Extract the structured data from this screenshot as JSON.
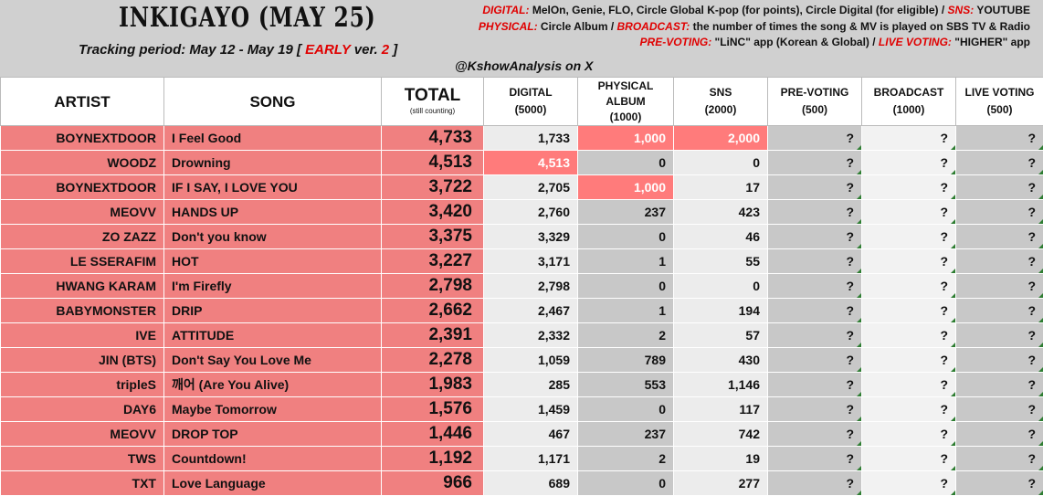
{
  "title": "INKIGAYO (MAY 25)",
  "tracking": {
    "prefix": "Tracking period: May 12 - May 19 [ ",
    "early": "EARLY",
    "ver": " ver. ",
    "ver_num": "2",
    "suffix": " ]"
  },
  "credit": "@KshowAnalysis on X",
  "notes": [
    {
      "k1": "DIGITAL:",
      "t1": " MelOn, Genie, FLO, Circle Global K-pop (for points), Circle Digital (for eligible) / ",
      "k2": "SNS:",
      "t2": " YOUTUBE"
    },
    {
      "k1": "PHYSICAL:",
      "t1": " Circle Album / ",
      "k2": "BROADCAST:",
      "t2": " the number of times the song & MV is played on SBS TV & Radio"
    },
    {
      "k1": "PRE-VOTING:",
      "t1": " \"LiNC\" app (Korean & Global) / ",
      "k2": "LIVE VOTING:",
      "t2": " \"HIGHER\" app"
    }
  ],
  "columns": {
    "artist": "ARTIST",
    "song": "SONG",
    "total": "TOTAL",
    "total_sub": "(still counting)",
    "digital": "DIGITAL",
    "digital_sub": "(5000)",
    "physical": "PHYSICAL ALBUM",
    "physical_sub": "(1000)",
    "sns": "SNS",
    "sns_sub": "(2000)",
    "prevoting": "PRE-VOTING",
    "prevoting_sub": "(500)",
    "broadcast": "BROADCAST",
    "broadcast_sub": "(1000)",
    "livevoting": "LIVE VOTING",
    "livevoting_sub": "(500)"
  },
  "rows": [
    {
      "artist": "BOYNEXTDOOR",
      "song": "I Feel Good",
      "total": "4,733",
      "digital": "1,733",
      "physical": "1,000",
      "sns": "2,000",
      "pre": "?",
      "broadcast": "?",
      "live": "?"
    },
    {
      "artist": "WOODZ",
      "song": "Drowning",
      "total": "4,513",
      "digital": "4,513",
      "physical": "0",
      "sns": "0",
      "pre": "?",
      "broadcast": "?",
      "live": "?"
    },
    {
      "artist": "BOYNEXTDOOR",
      "song": "IF I SAY, I LOVE YOU",
      "total": "3,722",
      "digital": "2,705",
      "physical": "1,000",
      "sns": "17",
      "pre": "?",
      "broadcast": "?",
      "live": "?"
    },
    {
      "artist": "MEOVV",
      "song": "HANDS UP",
      "total": "3,420",
      "digital": "2,760",
      "physical": "237",
      "sns": "423",
      "pre": "?",
      "broadcast": "?",
      "live": "?"
    },
    {
      "artist": "ZO ZAZZ",
      "song": "Don't you know",
      "total": "3,375",
      "digital": "3,329",
      "physical": "0",
      "sns": "46",
      "pre": "?",
      "broadcast": "?",
      "live": "?"
    },
    {
      "artist": "LE SSERAFIM",
      "song": "HOT",
      "total": "3,227",
      "digital": "3,171",
      "physical": "1",
      "sns": "55",
      "pre": "?",
      "broadcast": "?",
      "live": "?"
    },
    {
      "artist": "HWANG KARAM",
      "song": "I'm Firefly",
      "total": "2,798",
      "digital": "2,798",
      "physical": "0",
      "sns": "0",
      "pre": "?",
      "broadcast": "?",
      "live": "?"
    },
    {
      "artist": "BABYMONSTER",
      "song": "DRIP",
      "total": "2,662",
      "digital": "2,467",
      "physical": "1",
      "sns": "194",
      "pre": "?",
      "broadcast": "?",
      "live": "?"
    },
    {
      "artist": "IVE",
      "song": "ATTITUDE",
      "total": "2,391",
      "digital": "2,332",
      "physical": "2",
      "sns": "57",
      "pre": "?",
      "broadcast": "?",
      "live": "?"
    },
    {
      "artist": "JIN (BTS)",
      "song": "Don't Say You Love Me",
      "total": "2,278",
      "digital": "1,059",
      "physical": "789",
      "sns": "430",
      "pre": "?",
      "broadcast": "?",
      "live": "?"
    },
    {
      "artist": "tripleS",
      "song": "깨어 (Are You Alive)",
      "total": "1,983",
      "digital": "285",
      "physical": "553",
      "sns": "1,146",
      "pre": "?",
      "broadcast": "?",
      "live": "?"
    },
    {
      "artist": "DAY6",
      "song": "Maybe Tomorrow",
      "total": "1,576",
      "digital": "1,459",
      "physical": "0",
      "sns": "117",
      "pre": "?",
      "broadcast": "?",
      "live": "?"
    },
    {
      "artist": "MEOVV",
      "song": "DROP TOP",
      "total": "1,446",
      "digital": "467",
      "physical": "237",
      "sns": "742",
      "pre": "?",
      "broadcast": "?",
      "live": "?"
    },
    {
      "artist": "TWS",
      "song": "Countdown!",
      "total": "1,192",
      "digital": "1,171",
      "physical": "2",
      "sns": "19",
      "pre": "?",
      "broadcast": "?",
      "live": "?"
    },
    {
      "artist": "TXT",
      "song": "Love Language",
      "total": "966",
      "digital": "689",
      "physical": "0",
      "sns": "277",
      "pre": "?",
      "broadcast": "?",
      "live": "?"
    }
  ],
  "highlights": [
    {
      "row": 0,
      "col": "physical"
    },
    {
      "row": 0,
      "col": "sns"
    },
    {
      "row": 1,
      "col": "digital"
    },
    {
      "row": 2,
      "col": "physical"
    }
  ],
  "colors": {
    "accent_red": "#e00000",
    "row_pink": "#f08080",
    "highlight": "#ff7b7b",
    "gray_cell": "#c8c8c8"
  }
}
